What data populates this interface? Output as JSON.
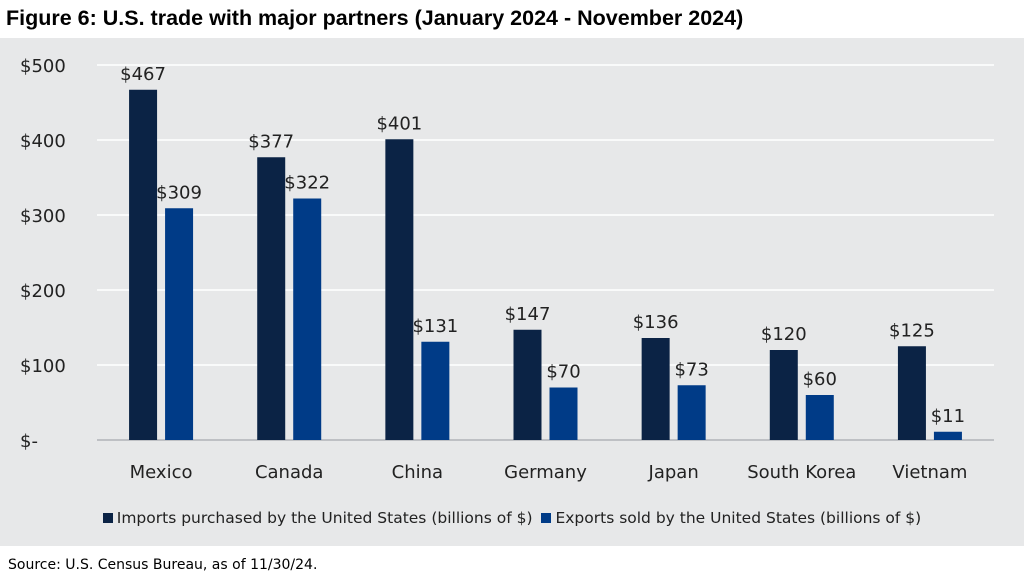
{
  "title": "Figure 6: U.S. trade with major partners (January 2024 - November 2024)",
  "source": "Source: U.S. Census Bureau, as of 11/30/24.",
  "colors": {
    "imports": "#0b2345",
    "exports": "#003b87",
    "panel": "#e7e8e9",
    "grid": "#ffffff"
  },
  "chart_data": {
    "type": "bar",
    "categories": [
      "Mexico",
      "Canada",
      "China",
      "Germany",
      "Japan",
      "South Korea",
      "Vietnam"
    ],
    "series": [
      {
        "name": "Imports purchased by the United States (billions of $)",
        "values": [
          467,
          377,
          401,
          147,
          136,
          120,
          125
        ],
        "labels": [
          "$467",
          "$377",
          "$401",
          "$147",
          "$136",
          "$120",
          "$125"
        ]
      },
      {
        "name": "Exports sold by the United States (billions of $)",
        "values": [
          309,
          322,
          131,
          70,
          73,
          60,
          11
        ],
        "labels": [
          "$309",
          "$322",
          "$131",
          "$70",
          "$73",
          "$60",
          "$11"
        ]
      }
    ],
    "ylim": [
      0,
      500
    ],
    "yticks": [
      0,
      100,
      200,
      300,
      400,
      500
    ],
    "ytick_labels": [
      "$-",
      "$100",
      "$200",
      "$300",
      "$400",
      "$500"
    ],
    "grid": true,
    "legend_position": "bottom"
  }
}
